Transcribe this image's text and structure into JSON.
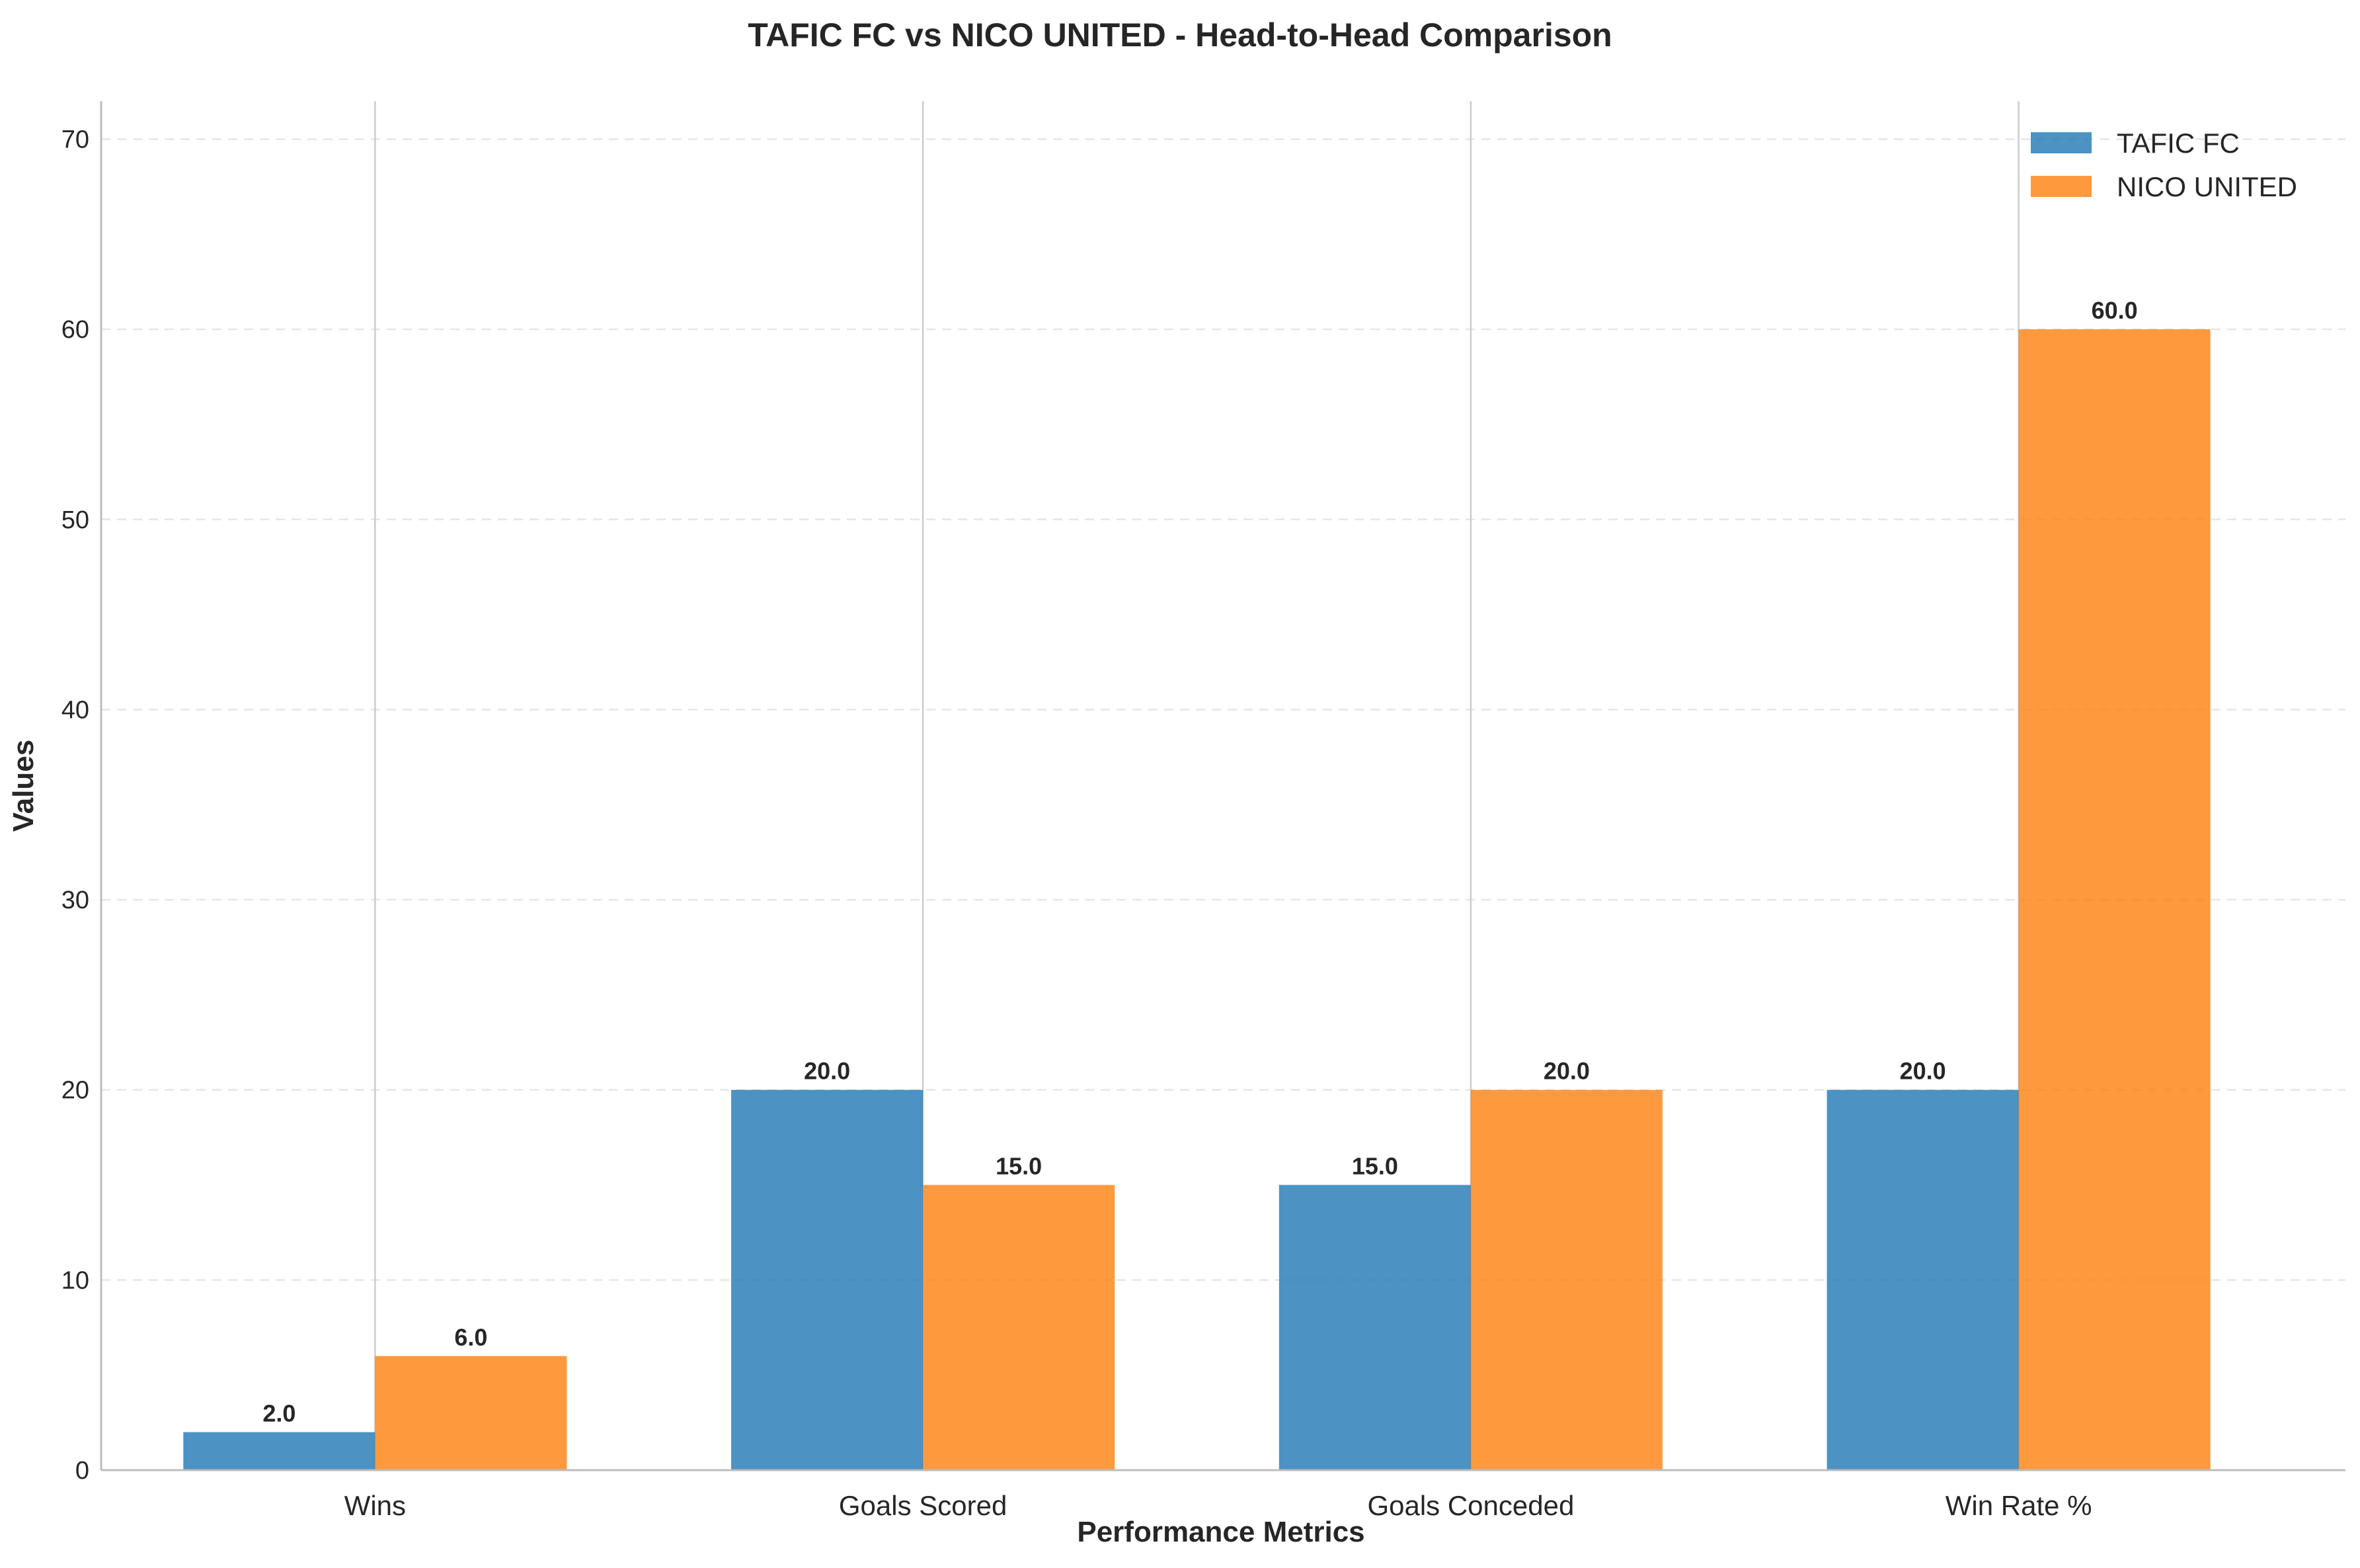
{
  "chart_data": {
    "type": "bar",
    "title": "TAFIC FC vs NICO UNITED - Head-to-Head Comparison",
    "xlabel": "Performance Metrics",
    "ylabel": "Values",
    "categories": [
      "Wins",
      "Goals Scored",
      "Goals Conceded",
      "Win Rate %"
    ],
    "series": [
      {
        "name": "TAFIC FC",
        "values": [
          2.0,
          20.0,
          15.0,
          20.0
        ],
        "color": "#1f77b4"
      },
      {
        "name": "NICO UNITED",
        "values": [
          6.0,
          15.0,
          20.0,
          60.0
        ],
        "color": "#ff7f0e"
      }
    ],
    "value_labels": [
      [
        "2.0",
        "20.0",
        "15.0",
        "20.0"
      ],
      [
        "6.0",
        "15.0",
        "20.0",
        "60.0"
      ]
    ],
    "ylim": [
      0,
      72
    ],
    "yticks": [
      0,
      10,
      20,
      30,
      40,
      50,
      60,
      70
    ],
    "ytick_labels": [
      "0",
      "10",
      "20",
      "30",
      "40",
      "50",
      "60",
      "70"
    ],
    "grid": {
      "y": true,
      "y_style": "dashed",
      "x": true,
      "x_style": "solid"
    },
    "legend_position": "top-right",
    "bar_opacity": 0.8
  }
}
